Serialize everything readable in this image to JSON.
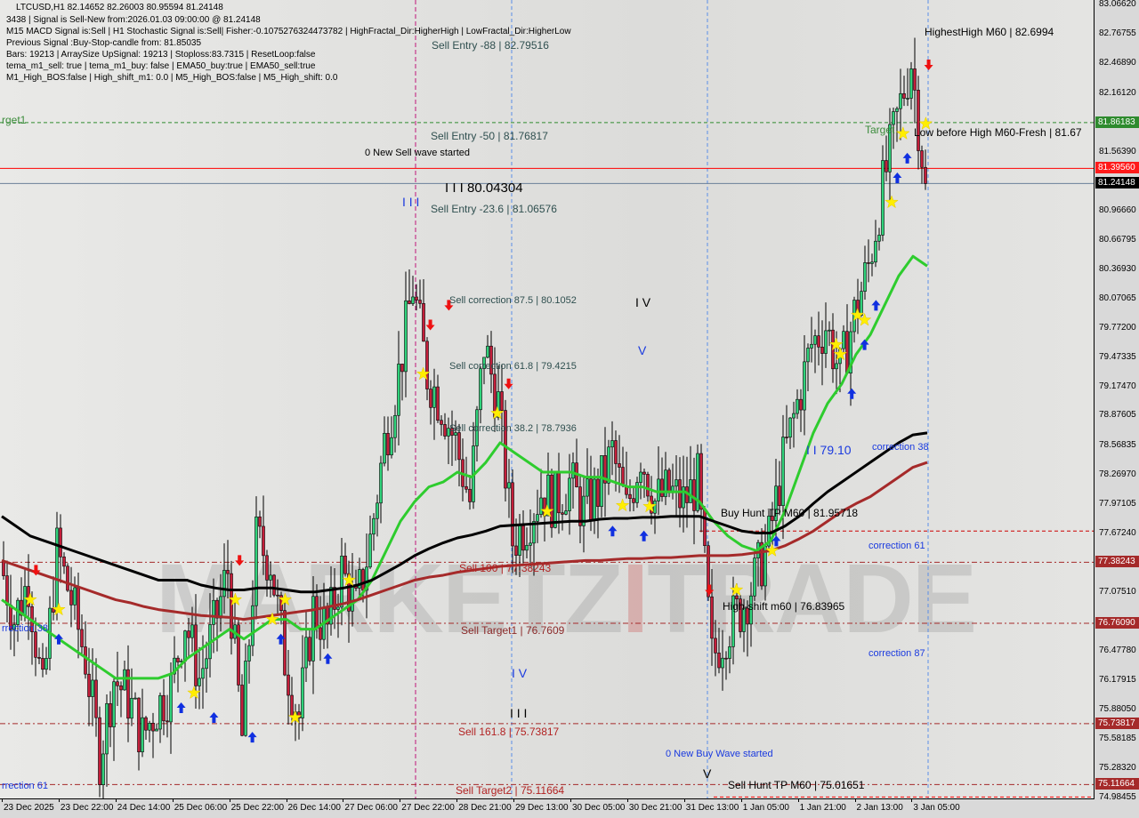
{
  "header": {
    "symbol_line": "LTCUSD,H1  82.14652 82.26003 80.95594 81.24148",
    "lines": [
      "3438 | Signal is Sell-New from:2026.01.03 09:00:00 @ 81.24148",
      "M15 MACD Signal is:Sell | H1 Stochastic Signal is:Sell| Fisher:-0.1075276324473782 | HighFractal_Dir:HigherHigh | LowFractal_Dir:HigherLow",
      "Previous Signal :Buy-Stop-candle from: 81.85035",
      "Bars: 19213 | ArraySize UpSignal: 19213 | Stoploss:83.7315 | ResetLoop:false",
      "tema_m1_sell: true | tema_m1_buy: false | EMA50_buy:true | EMA50_sell:true",
      "M1_High_BOS:false | High_shift_m1: 0.0 | M5_High_BOS:false | M5_High_shift: 0.0"
    ]
  },
  "watermark": {
    "left": "MARKETZ",
    "mid": "I",
    "right": "TRADE"
  },
  "annotations": {
    "sell_entry_88": "Sell Entry -88 | 82.79516",
    "sell_entry_50": "Sell Entry -50 | 81.76817",
    "new_sell_wave": "0 New Sell wave started",
    "wave3_price": "I I I 80.04304",
    "wave3_blue": "I I I",
    "sell_entry_236": "Sell Entry -23.6 | 81.06576",
    "sell_corr_875": "Sell correction 87.5 | 80.1052",
    "wave4": "I V",
    "wave5_blue": "V",
    "sell_corr_618": "Sell correction 61.8 | 79.4215",
    "sell_corr_382": "Sell correction 38.2 | 78.7936",
    "wave2_price": "I I 79.10",
    "correction_38_right": "correction 38",
    "buy_hunt_tp": "Buy Hunt TP M60 | 81.95718",
    "correction_61_right": "correction 61",
    "sell_100": "Sell 100 | 77.38243",
    "high_shift": "High-shift m60 | 76.83965",
    "sell_target1": "Sell Target1 | 76.7609",
    "correction_87_right": "correction 87",
    "wave4_blue": "I V",
    "wave3_black": "I I I",
    "sell_1618": "Sell 161.8 | 75.73817",
    "new_buy_wave": "0 New Buy Wave started",
    "wave5_black": "V",
    "sell_hunt_tp": "Sell Hunt TP M60 | 75.01651",
    "sell_target2": "Sell Target2 | 75.11664",
    "highest_high": "HighestHigh    M60 | 82.6994",
    "low_before_high": "Low before High    M60-Fresh | 81.67",
    "target": "Target",
    "target1_left": "rget1",
    "correction_38_left": "rrection 38",
    "correction_61_left": "rrection 61"
  },
  "chart_data": {
    "type": "candlestick",
    "symbol": "LTCUSD",
    "timeframe": "H1",
    "ylim": [
      74.98455,
      83.0662
    ],
    "y_ticks": [
      "83.06620",
      "82.76755",
      "82.46890",
      "82.16120",
      "81.86183",
      "81.56390",
      "81.39560",
      "81.24148",
      "80.96660",
      "80.66795",
      "80.36930",
      "80.07065",
      "79.77200",
      "79.47335",
      "79.17470",
      "78.87605",
      "78.56835",
      "78.26970",
      "77.97105",
      "77.67240",
      "77.38243",
      "77.07510",
      "76.76090",
      "76.47780",
      "76.17915",
      "75.88050",
      "75.73817",
      "75.58185",
      "75.28320",
      "75.11664",
      "74.98455"
    ],
    "price_tags": [
      {
        "value": "81.86183",
        "color": "#2e8b2e"
      },
      {
        "value": "81.39560",
        "color": "#ff1a1a"
      },
      {
        "value": "81.24148",
        "color": "#000000"
      },
      {
        "value": "77.38243",
        "color": "#a52a2a"
      },
      {
        "value": "76.76090",
        "color": "#a52a2a"
      },
      {
        "value": "75.73817",
        "color": "#a52a2a"
      },
      {
        "value": "75.11664",
        "color": "#a52a2a"
      }
    ],
    "x_ticks": [
      "23 Dec 2025",
      "23 Dec 22:00",
      "24 Dec 14:00",
      "25 Dec 06:00",
      "25 Dec 22:00",
      "26 Dec 14:00",
      "27 Dec 06:00",
      "27 Dec 22:00",
      "28 Dec 21:00",
      "29 Dec 13:00",
      "30 Dec 05:00",
      "30 Dec 21:00",
      "31 Dec 13:00",
      "1 Jan 05:00",
      "1 Jan 21:00",
      "2 Jan 13:00",
      "3 Jan 05:00"
    ],
    "closes_4h": [
      77.4,
      76.8,
      77.2,
      76.0,
      77.5,
      77.0,
      76.4,
      75.4,
      76.2,
      76.0,
      75.6,
      75.9,
      76.1,
      76.8,
      76.2,
      76.7,
      77.3,
      75.6,
      77.6,
      77.4,
      76.4,
      75.8,
      76.9,
      76.7,
      77.3,
      76.9,
      77.6,
      78.6,
      79.3,
      80.2,
      79.3,
      79.0,
      78.6,
      78.0,
      79.6,
      79.0,
      77.6,
      77.8,
      78.1,
      78.0,
      78.2,
      77.9,
      78.1,
      78.5,
      77.9,
      78.5,
      78.0,
      78.1,
      78.0,
      78.2,
      76.4,
      76.7,
      76.9,
      77.2,
      77.6,
      78.4,
      79.0,
      79.6,
      79.8,
      79.3,
      79.9,
      80.4,
      81.2,
      81.9,
      82.5,
      81.24148
    ],
    "last_close": 81.24148,
    "overlays": [
      {
        "color": "#2ecc2e",
        "values_4h": [
          77.0,
          76.9,
          76.8,
          76.7,
          76.6,
          76.5,
          76.4,
          76.3,
          76.2,
          76.2,
          76.2,
          76.2,
          76.25,
          76.4,
          76.5,
          76.6,
          76.7,
          76.6,
          76.7,
          76.8,
          76.8,
          76.7,
          76.7,
          76.8,
          76.9,
          77.0,
          77.2,
          77.5,
          77.8,
          78.0,
          78.15,
          78.2,
          78.3,
          78.25,
          78.4,
          78.6,
          78.5,
          78.4,
          78.3,
          78.3,
          78.3,
          78.25,
          78.25,
          78.2,
          78.15,
          78.15,
          78.1,
          78.1,
          78.1,
          78.0,
          77.8,
          77.65,
          77.55,
          77.5,
          77.6,
          77.9,
          78.3,
          78.7,
          79.0,
          79.2,
          79.5,
          79.7,
          80.0,
          80.3,
          80.5,
          80.4
        ]
      },
      {
        "color": "#000000",
        "values_4h": [
          77.85,
          77.75,
          77.65,
          77.6,
          77.55,
          77.5,
          77.45,
          77.4,
          77.35,
          77.3,
          77.25,
          77.2,
          77.2,
          77.2,
          77.15,
          77.12,
          77.1,
          77.1,
          77.12,
          77.12,
          77.1,
          77.08,
          77.08,
          77.1,
          77.12,
          77.15,
          77.2,
          77.28,
          77.36,
          77.45,
          77.52,
          77.58,
          77.63,
          77.66,
          77.7,
          77.75,
          77.76,
          77.77,
          77.78,
          77.79,
          77.8,
          77.8,
          77.82,
          77.83,
          77.83,
          77.84,
          77.84,
          77.85,
          77.85,
          77.85,
          77.8,
          77.75,
          77.7,
          77.68,
          77.68,
          77.75,
          77.85,
          77.98,
          78.1,
          78.2,
          78.3,
          78.4,
          78.5,
          78.6,
          78.68,
          78.7
        ]
      },
      {
        "color": "#a52a2a",
        "values_4h": [
          77.4,
          77.35,
          77.3,
          77.25,
          77.2,
          77.15,
          77.1,
          77.05,
          77.0,
          76.97,
          76.93,
          76.9,
          76.88,
          76.86,
          76.84,
          76.83,
          76.82,
          76.8,
          76.82,
          76.84,
          76.86,
          76.88,
          76.9,
          76.93,
          76.96,
          77.0,
          77.05,
          77.1,
          77.15,
          77.2,
          77.23,
          77.25,
          77.28,
          77.3,
          77.32,
          77.34,
          77.35,
          77.36,
          77.37,
          77.38,
          77.39,
          77.4,
          77.4,
          77.41,
          77.42,
          77.42,
          77.43,
          77.43,
          77.44,
          77.45,
          77.45,
          77.45,
          77.46,
          77.48,
          77.5,
          77.55,
          77.62,
          77.7,
          77.8,
          77.9,
          77.98,
          78.05,
          78.15,
          78.25,
          78.35,
          78.4
        ]
      }
    ],
    "levels": [
      {
        "value": 81.86183,
        "color": "#2e8b2e",
        "style": "dashed"
      },
      {
        "value": 81.3956,
        "color": "#ff0000",
        "style": "solid"
      },
      {
        "value": 81.24148,
        "color": "#6a7f99",
        "style": "solid"
      },
      {
        "value": 77.7,
        "color": "#cc0000",
        "style": "dashed",
        "from_index": 49
      },
      {
        "value": 77.38243,
        "color": "#a52a2a",
        "style": "dashdot"
      },
      {
        "value": 76.7609,
        "color": "#a52a2a",
        "style": "dashdot"
      },
      {
        "value": 75.73817,
        "color": "#a52a2a",
        "style": "dashdot"
      },
      {
        "value": 75.11664,
        "color": "#a52a2a",
        "style": "dashdot"
      },
      {
        "value": 74.99,
        "color": "#ff0000",
        "style": "dashed",
        "from_index": 50
      }
    ],
    "markers": [
      {
        "type": "star",
        "i": 2,
        "p": 77.0
      },
      {
        "type": "star",
        "i": 4,
        "p": 76.9
      },
      {
        "type": "sell-arrow",
        "i": 2.4,
        "p": 77.3
      },
      {
        "type": "buy-arrow",
        "i": 4,
        "p": 76.6
      },
      {
        "type": "buy-arrow",
        "i": 12.6,
        "p": 75.9
      },
      {
        "type": "star",
        "i": 13.5,
        "p": 76.05
      },
      {
        "type": "buy-arrow",
        "i": 14.9,
        "p": 75.8
      },
      {
        "type": "sell-arrow",
        "i": 16.7,
        "p": 77.4
      },
      {
        "type": "star",
        "i": 16.4,
        "p": 77.0
      },
      {
        "type": "buy-arrow",
        "i": 17.6,
        "p": 75.6
      },
      {
        "type": "star",
        "i": 19,
        "p": 76.8
      },
      {
        "type": "star",
        "i": 19.9,
        "p": 77.0
      },
      {
        "type": "buy-arrow",
        "i": 19.6,
        "p": 76.6
      },
      {
        "type": "star",
        "i": 20.6,
        "p": 75.8
      },
      {
        "type": "buy-arrow",
        "i": 22.9,
        "p": 76.4
      },
      {
        "type": "star",
        "i": 24.4,
        "p": 77.2
      },
      {
        "type": "star",
        "i": 29.6,
        "p": 79.3
      },
      {
        "type": "sell-arrow",
        "i": 30.1,
        "p": 79.8
      },
      {
        "type": "sell-arrow",
        "i": 31.4,
        "p": 80.0
      },
      {
        "type": "star",
        "i": 34.8,
        "p": 78.9
      },
      {
        "type": "sell-arrow",
        "i": 35.6,
        "p": 79.2
      },
      {
        "type": "star",
        "i": 38.3,
        "p": 77.9
      },
      {
        "type": "buy-arrow",
        "i": 42.9,
        "p": 77.7
      },
      {
        "type": "star",
        "i": 43.6,
        "p": 77.96
      },
      {
        "type": "buy-arrow",
        "i": 45.1,
        "p": 77.65
      },
      {
        "type": "star",
        "i": 45.5,
        "p": 77.95
      },
      {
        "type": "sell-arrow",
        "i": 49.7,
        "p": 77.1
      },
      {
        "type": "star",
        "i": 51.6,
        "p": 77.1
      },
      {
        "type": "star",
        "i": 54.1,
        "p": 77.5
      },
      {
        "type": "buy-arrow",
        "i": 54.4,
        "p": 77.6
      },
      {
        "type": "star",
        "i": 58.6,
        "p": 79.6
      },
      {
        "type": "star",
        "i": 58.9,
        "p": 79.5
      },
      {
        "type": "buy-arrow",
        "i": 59.7,
        "p": 79.1
      },
      {
        "type": "star",
        "i": 60.1,
        "p": 79.9
      },
      {
        "type": "star",
        "i": 60.6,
        "p": 79.85
      },
      {
        "type": "buy-arrow",
        "i": 60.6,
        "p": 79.6
      },
      {
        "type": "buy-arrow",
        "i": 61.4,
        "p": 80.0
      },
      {
        "type": "star",
        "i": 62.5,
        "p": 81.05
      },
      {
        "type": "buy-arrow",
        "i": 62.9,
        "p": 81.3
      },
      {
        "type": "buy-arrow",
        "i": 63.6,
        "p": 81.5
      },
      {
        "type": "star",
        "i": 63.3,
        "p": 81.75
      },
      {
        "type": "star",
        "i": 64.9,
        "p": 81.85
      },
      {
        "type": "sell-arrow",
        "i": 65.1,
        "p": 82.45
      }
    ]
  }
}
